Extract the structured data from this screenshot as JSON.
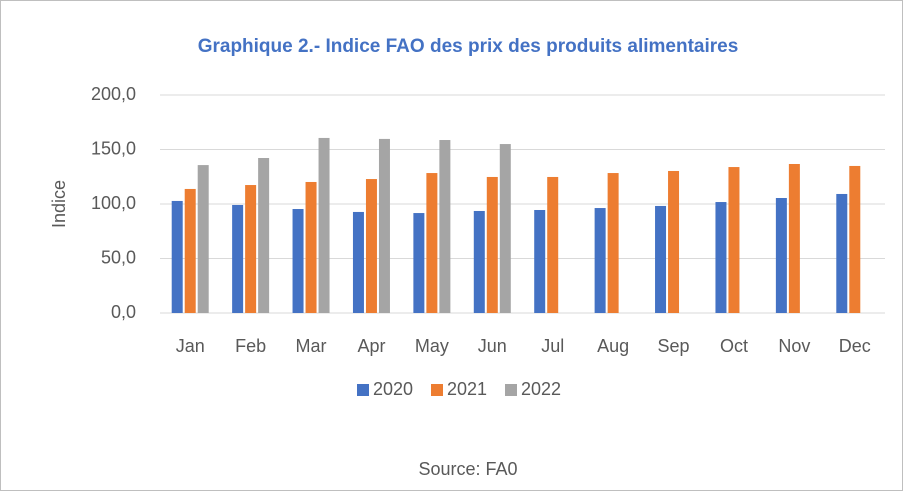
{
  "chart_data": {
    "type": "bar",
    "title": "Graphique 2.- Indice FAO des prix des produits alimentaires",
    "y_label": "Indice",
    "source": "Source: FA0",
    "categories": [
      "Jan",
      "Feb",
      "Mar",
      "Apr",
      "May",
      "Jun",
      "Jul",
      "Aug",
      "Sep",
      "Oct",
      "Nov",
      "Dec"
    ],
    "series": [
      {
        "name": "2020",
        "color": "#4472c4",
        "values": [
          102.8,
          99.1,
          95.4,
          92.7,
          91.7,
          93.6,
          94.5,
          96.3,
          98.2,
          101.8,
          105.5,
          109.2
        ]
      },
      {
        "name": "2021",
        "color": "#ed7d31",
        "values": [
          113.8,
          117.4,
          120.2,
          122.9,
          128.4,
          124.8,
          124.8,
          128.4,
          130.3,
          133.9,
          136.7,
          134.9
        ]
      },
      {
        "name": "2022",
        "color": "#a5a5a5",
        "values": [
          135.7,
          142.2,
          160.6,
          159.7,
          158.7,
          155.0,
          null,
          null,
          null,
          null,
          null,
          null
        ]
      }
    ],
    "ylim": [
      0,
      200
    ],
    "yticks": [
      {
        "value": 0,
        "label": "0,0"
      },
      {
        "value": 50,
        "label": "50,0"
      },
      {
        "value": 100,
        "label": "100,0"
      },
      {
        "value": 150,
        "label": "150,0"
      },
      {
        "value": 200,
        "label": "200,0"
      }
    ],
    "grid": true,
    "legend": "bottom"
  }
}
